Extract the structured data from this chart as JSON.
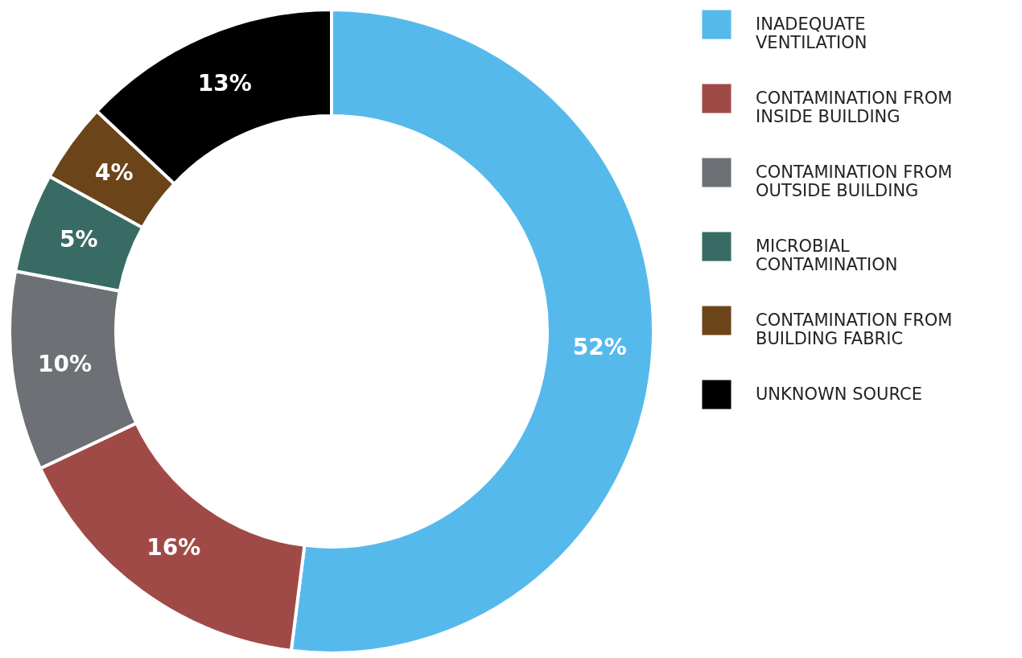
{
  "chart_data": {
    "type": "donut",
    "categories": [
      "INADEQUATE VENTILATION",
      "CONTAMINATION FROM INSIDE BUILDING",
      "CONTAMINATION FROM OUTSIDE BUILDING",
      "MICROBIAL CONTAMINATION",
      "CONTAMINATION FROM BUILDING FABRIC",
      "UNKNOWN SOURCE"
    ],
    "values": [
      52,
      16,
      10,
      5,
      4,
      13
    ],
    "colors": [
      "#56b9eb",
      "#a04a47",
      "#6d7075",
      "#386b64",
      "#6b4519",
      "#000000"
    ],
    "value_labels": [
      "52%",
      "16%",
      "10%",
      "5%",
      "4%",
      "13%"
    ],
    "legend": "right"
  }
}
